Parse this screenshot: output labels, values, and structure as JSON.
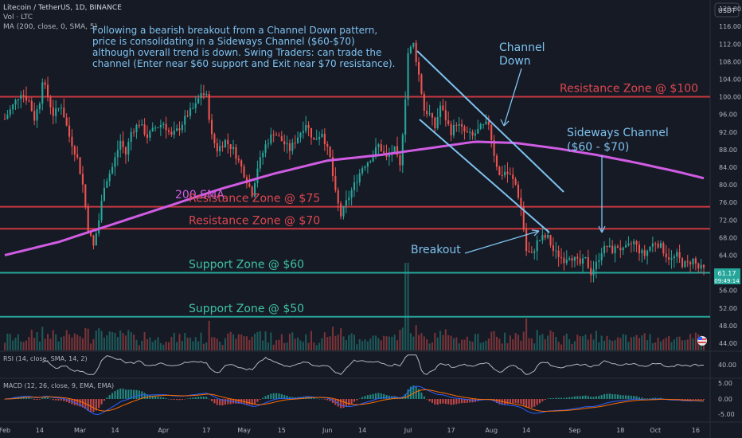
{
  "header": {
    "symbol_line": "Litecoin / TetherUS, 1D, BINANCE",
    "vol_line": "Vol · LTC",
    "ma_line": "MA (200, close, 0, SMA, 5)",
    "currency_button": "USDT"
  },
  "price_tag": {
    "value": "61.17",
    "countdown": "09:49:14"
  },
  "chart_data": {
    "type": "candlestick",
    "y_axis": {
      "ticks": [
        "120.00",
        "116.00",
        "112.00",
        "108.00",
        "104.00",
        "100.00",
        "96.00",
        "92.00",
        "88.00",
        "84.00",
        "80.00",
        "76.00",
        "72.00",
        "68.00",
        "64.00",
        "60.00",
        "56.00",
        "52.00",
        "48.00",
        "44.00"
      ],
      "range": [
        42,
        122
      ]
    },
    "x_axis": {
      "ticks": [
        {
          "label": "Feb",
          "day": 0
        },
        {
          "label": "14",
          "day": 13
        },
        {
          "label": "Mar",
          "day": 28
        },
        {
          "label": "14",
          "day": 41
        },
        {
          "label": "Apr",
          "day": 59
        },
        {
          "label": "17",
          "day": 75
        },
        {
          "label": "May",
          "day": 89
        },
        {
          "label": "15",
          "day": 103
        },
        {
          "label": "Jun",
          "day": 120
        },
        {
          "label": "14",
          "day": 133
        },
        {
          "label": "Jul",
          "day": 150
        },
        {
          "label": "17",
          "day": 166
        },
        {
          "label": "Aug",
          "day": 181
        },
        {
          "label": "14",
          "day": 194
        },
        {
          "label": "Sep",
          "day": 212
        },
        {
          "label": "18",
          "day": 229
        },
        {
          "label": "Oct",
          "day": 242
        },
        {
          "label": "16",
          "day": 257
        }
      ]
    },
    "price_keypoints": [
      [
        0,
        95
      ],
      [
        3,
        98
      ],
      [
        6,
        101
      ],
      [
        9,
        99
      ],
      [
        11,
        95
      ],
      [
        13,
        99
      ],
      [
        14,
        104
      ],
      [
        16,
        100
      ],
      [
        18,
        96
      ],
      [
        21,
        98
      ],
      [
        24,
        91
      ],
      [
        27,
        86
      ],
      [
        29,
        80
      ],
      [
        31,
        70
      ],
      [
        33,
        66
      ],
      [
        35,
        72
      ],
      [
        37,
        80
      ],
      [
        40,
        84
      ],
      [
        43,
        90
      ],
      [
        45,
        87
      ],
      [
        47,
        92
      ],
      [
        50,
        94
      ],
      [
        53,
        91
      ],
      [
        56,
        93
      ],
      [
        59,
        94
      ],
      [
        62,
        91
      ],
      [
        65,
        93
      ],
      [
        68,
        96
      ],
      [
        71,
        98
      ],
      [
        73,
        101
      ],
      [
        75,
        100
      ],
      [
        77,
        91
      ],
      [
        79,
        88
      ],
      [
        82,
        90
      ],
      [
        85,
        88
      ],
      [
        88,
        84
      ],
      [
        90,
        81
      ],
      [
        92,
        78
      ],
      [
        94,
        84
      ],
      [
        97,
        89
      ],
      [
        100,
        92
      ],
      [
        103,
        90
      ],
      [
        106,
        88
      ],
      [
        109,
        91
      ],
      [
        112,
        94
      ],
      [
        115,
        90
      ],
      [
        118,
        92
      ],
      [
        121,
        86
      ],
      [
        123,
        78
      ],
      [
        125,
        73
      ],
      [
        127,
        76
      ],
      [
        130,
        80
      ],
      [
        133,
        84
      ],
      [
        136,
        86
      ],
      [
        139,
        89
      ],
      [
        142,
        86
      ],
      [
        145,
        88
      ],
      [
        147,
        84
      ],
      [
        149,
        100
      ],
      [
        150,
        110
      ],
      [
        152,
        112
      ],
      [
        154,
        105
      ],
      [
        156,
        97
      ],
      [
        158,
        96
      ],
      [
        160,
        93
      ],
      [
        162,
        98
      ],
      [
        164,
        95
      ],
      [
        166,
        92
      ],
      [
        168,
        94
      ],
      [
        171,
        92
      ],
      [
        174,
        91
      ],
      [
        177,
        93
      ],
      [
        180,
        94
      ],
      [
        182,
        87
      ],
      [
        184,
        82
      ],
      [
        186,
        83
      ],
      [
        188,
        82
      ],
      [
        190,
        80
      ],
      [
        192,
        75
      ],
      [
        194,
        65
      ],
      [
        196,
        64
      ],
      [
        198,
        67
      ],
      [
        200,
        68
      ],
      [
        202,
        68
      ],
      [
        204,
        65
      ],
      [
        206,
        64
      ],
      [
        208,
        63
      ],
      [
        210,
        64
      ],
      [
        212,
        63
      ],
      [
        214,
        62
      ],
      [
        216,
        63
      ],
      [
        218,
        60
      ],
      [
        220,
        62
      ],
      [
        222,
        65
      ],
      [
        224,
        66
      ],
      [
        226,
        65
      ],
      [
        228,
        66
      ],
      [
        230,
        65
      ],
      [
        232,
        66
      ],
      [
        234,
        67
      ],
      [
        236,
        65
      ],
      [
        238,
        64
      ],
      [
        240,
        66
      ],
      [
        242,
        67
      ],
      [
        244,
        66
      ],
      [
        246,
        64
      ],
      [
        248,
        63
      ],
      [
        250,
        64
      ],
      [
        252,
        62
      ],
      [
        254,
        62
      ],
      [
        256,
        63
      ],
      [
        258,
        61
      ],
      [
        260,
        61.17
      ]
    ],
    "sma200_keypoints": [
      [
        0,
        64
      ],
      [
        20,
        67
      ],
      [
        40,
        71
      ],
      [
        60,
        75
      ],
      [
        80,
        79
      ],
      [
        100,
        82.5
      ],
      [
        120,
        85.5
      ],
      [
        140,
        86.8
      ],
      [
        160,
        88.5
      ],
      [
        175,
        89.8
      ],
      [
        190,
        89.5
      ],
      [
        205,
        88.3
      ],
      [
        220,
        86.8
      ],
      [
        235,
        85
      ],
      [
        250,
        83
      ],
      [
        260,
        81.5
      ]
    ],
    "annotations": {
      "summary_lines": [
        "Following a bearish breakout from a Channel Down pattern,",
        "price is consolidating in a Sideways Channel ($60-$70)",
        "although overall trend is down. Swing Traders: can trade the",
        "channel (Enter near $60 support and Exit near $70 resistance)."
      ],
      "channel_down_lines": [
        "Channel",
        "Down"
      ],
      "sideways_lines": [
        "Sideways Channel",
        "($60 - $70)"
      ],
      "breakout": "Breakout",
      "sma_label": "200 SMA",
      "zones": [
        {
          "label": "Resistance Zone @ $100",
          "price": 100,
          "color": "#c9383f",
          "label_color": "#e0474f"
        },
        {
          "label": "Resistance Zone @ $75",
          "price": 75,
          "color": "#c9383f",
          "label_color": "#e0474f"
        },
        {
          "label": "Resistance Zone @ $70",
          "price": 70,
          "color": "#c9383f",
          "label_color": "#e0474f"
        },
        {
          "label": "Support Zone @ $60",
          "price": 60,
          "color": "#26a69a",
          "label_color": "#3ec3a4"
        },
        {
          "label": "Support Zone @ $50",
          "price": 50,
          "color": "#26a69a",
          "label_color": "#3ec3a4"
        }
      ]
    },
    "indicators": {
      "rsi_label": "RSI (14, close, SMA, 14, 2)",
      "rsi_tick": "40.00",
      "macd_label": "MACD (12, 26, close, 9, EMA, EMA)",
      "macd_ticks": [
        "5.00",
        "0.00",
        "-5.00"
      ]
    },
    "colors": {
      "up": "#26a69a",
      "down": "#ef5350",
      "sma": "#d05ce3",
      "annot": "#7ec2ef",
      "axis_text": "#b2b5be",
      "bg": "#161a25"
    }
  }
}
